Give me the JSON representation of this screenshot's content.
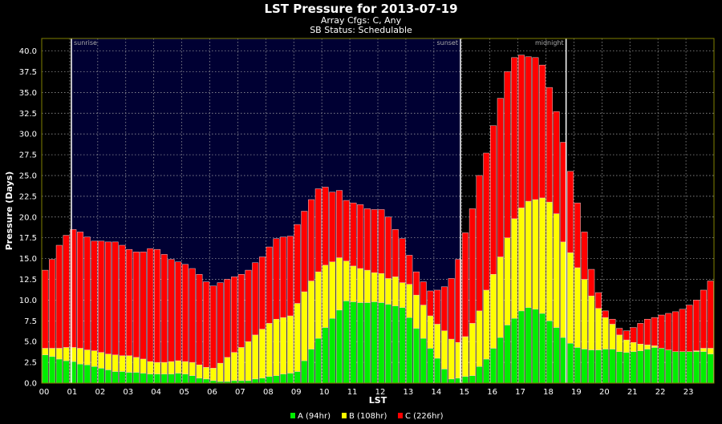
{
  "chart_data": {
    "type": "bar",
    "stacked": true,
    "title": "LST Pressure for 2013-07-19",
    "subtitles": [
      "Array Cfgs: C, Any",
      "SB Status: Schedulable"
    ],
    "xlabel": "LST",
    "ylabel": "Pressure (Days)",
    "xlim": [
      0,
      24
    ],
    "ylim": [
      0,
      41.5
    ],
    "bin_hours": 0.25,
    "grid": true,
    "legend_position": "bottom-center",
    "x_tick_labels": [
      "00",
      "01",
      "02",
      "03",
      "04",
      "05",
      "06",
      "07",
      "08",
      "09",
      "10",
      "11",
      "12",
      "13",
      "14",
      "15",
      "16",
      "17",
      "18",
      "19",
      "20",
      "21",
      "22",
      "23"
    ],
    "y_tick_labels": [
      "0.0",
      "2.5",
      "5.0",
      "7.5",
      "10.0",
      "12.5",
      "15.0",
      "17.5",
      "20.0",
      "22.5",
      "25.0",
      "27.5",
      "30.0",
      "32.5",
      "35.0",
      "37.5",
      "40.0"
    ],
    "annotations": [
      {
        "label": "sunrise",
        "lst": 1.06
      },
      {
        "label": "sunset",
        "lst": 14.95
      },
      {
        "label": "midnight",
        "lst": 18.72
      }
    ],
    "daytime_range": [
      1.06,
      14.95
    ],
    "series": [
      {
        "name": "A",
        "legend": "A (94hr)",
        "color": "#00ee00",
        "values": [
          3.4,
          3.2,
          2.9,
          2.7,
          2.6,
          2.3,
          2.2,
          2.0,
          1.8,
          1.6,
          1.4,
          1.4,
          1.3,
          1.3,
          1.2,
          1.1,
          1.1,
          1.1,
          1.1,
          1.2,
          1.1,
          0.9,
          0.6,
          0.5,
          0.3,
          0.2,
          0.2,
          0.3,
          0.3,
          0.3,
          0.5,
          0.6,
          0.8,
          0.9,
          1.1,
          1.2,
          1.4,
          2.7,
          4.1,
          5.4,
          6.7,
          7.8,
          8.8,
          9.9,
          9.8,
          9.7,
          9.7,
          9.8,
          9.7,
          9.5,
          9.3,
          9.1,
          7.9,
          6.6,
          5.4,
          4.2,
          3.0,
          1.7,
          0.5,
          0.6,
          0.8,
          0.9,
          2.0,
          2.9,
          4.2,
          5.5,
          7.0,
          7.8,
          8.7,
          9.1,
          8.9,
          8.4,
          7.5,
          6.7,
          5.5,
          4.8,
          4.3,
          4.1,
          4.0,
          4.0,
          4.1,
          4.1,
          3.8,
          3.7,
          3.8,
          3.9,
          4.1,
          4.3,
          4.2,
          4.0,
          3.8,
          3.8,
          3.8,
          3.8,
          3.8,
          3.5
        ]
      },
      {
        "name": "B",
        "legend": "B (108hr)",
        "color": "#ffff00",
        "values": [
          0.8,
          1.0,
          1.3,
          1.6,
          1.7,
          1.9,
          1.8,
          1.9,
          1.9,
          1.9,
          2.0,
          1.9,
          2.0,
          1.8,
          1.7,
          1.5,
          1.4,
          1.4,
          1.5,
          1.5,
          1.5,
          1.6,
          1.6,
          1.4,
          1.5,
          2.2,
          2.9,
          3.4,
          4.0,
          4.7,
          5.3,
          5.9,
          6.4,
          6.8,
          6.8,
          6.9,
          8.2,
          8.3,
          8.2,
          8.0,
          7.5,
          6.8,
          6.3,
          4.8,
          4.3,
          4.1,
          3.9,
          3.5,
          3.5,
          3.1,
          3.5,
          3.0,
          4.0,
          4.0,
          4.0,
          3.9,
          4.1,
          4.6,
          4.8,
          4.3,
          4.8,
          6.3,
          6.7,
          8.3,
          8.9,
          9.7,
          10.5,
          12.0,
          12.4,
          12.8,
          13.2,
          13.9,
          14.3,
          13.7,
          11.5,
          10.9,
          9.6,
          8.4,
          6.5,
          5.0,
          3.8,
          3.0,
          2.0,
          1.5,
          1.1,
          0.8,
          0.5,
          0.2,
          0.0,
          0.0,
          0.0,
          0.0,
          0.0,
          0.1,
          0.4,
          0.7
        ]
      },
      {
        "name": "C",
        "legend": "C (226hr)",
        "color": "#ff0000",
        "values": [
          9.4,
          10.7,
          12.4,
          13.5,
          14.2,
          14.0,
          13.6,
          13.2,
          13.4,
          13.5,
          13.6,
          13.3,
          12.8,
          12.7,
          12.9,
          13.6,
          13.6,
          13.0,
          12.3,
          11.9,
          11.7,
          11.3,
          10.9,
          10.3,
          9.9,
          9.7,
          9.4,
          9.1,
          8.8,
          8.6,
          8.7,
          8.7,
          9.2,
          9.7,
          9.7,
          9.6,
          9.5,
          9.7,
          9.8,
          10.0,
          9.4,
          8.4,
          8.1,
          7.3,
          7.6,
          7.7,
          7.4,
          7.6,
          7.7,
          7.4,
          5.7,
          5.3,
          3.5,
          2.8,
          2.8,
          3.0,
          4.1,
          5.3,
          7.3,
          10.0,
          12.5,
          13.8,
          16.3,
          16.5,
          17.9,
          19.1,
          20.0,
          19.4,
          18.4,
          17.4,
          17.1,
          16.0,
          13.8,
          12.3,
          12.0,
          9.8,
          7.8,
          5.7,
          3.2,
          1.9,
          0.8,
          0.6,
          0.8,
          1.1,
          1.8,
          2.5,
          3.1,
          3.4,
          4.0,
          4.4,
          4.8,
          5.1,
          5.6,
          6.1,
          7.0,
          8.1
        ]
      }
    ]
  },
  "colors": {
    "night_bg": "#000000",
    "day_bg": "#000033",
    "frame": "#808000",
    "grid": "#aaaaaa",
    "marker_line": "#ffffff"
  }
}
